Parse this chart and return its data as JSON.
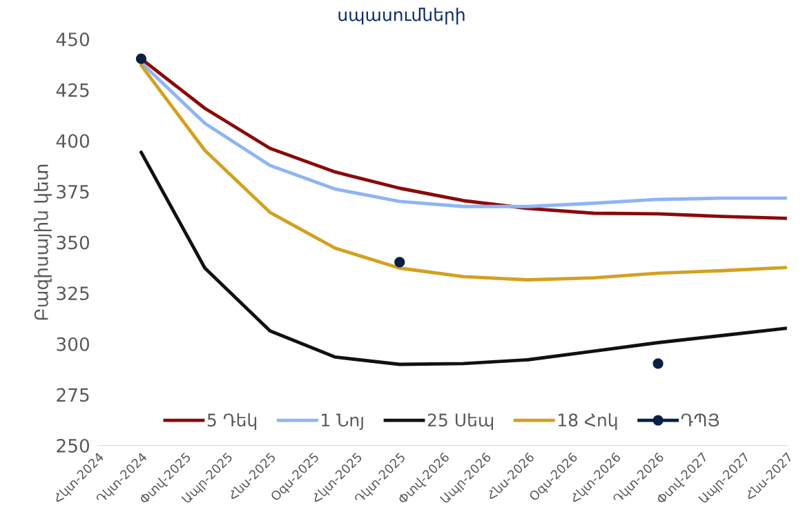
{
  "chart_data": {
    "type": "line",
    "title": "սպասումների",
    "ylabel": "Բազիսային կետ",
    "x": [
      "2024-12",
      "2025-03",
      "2025-06",
      "2025-09",
      "2025-12",
      "2026-03",
      "2026-06",
      "2026-09",
      "2026-12",
      "2027-03",
      "2027-06"
    ],
    "series": [
      {
        "name": "5 Դեկ",
        "color": "#8b0a0a",
        "values": [
          440.3,
          415.9,
          396.2,
          384.6,
          376.6,
          370.5,
          366.6,
          364.3,
          364.0,
          362.7,
          361.8
        ]
      },
      {
        "name": "1 Նոյ",
        "color": "#8fb4f5",
        "values": [
          438.4,
          408.5,
          387.8,
          376.2,
          370.1,
          367.6,
          367.6,
          369.2,
          371.1,
          371.7,
          371.7
        ]
      },
      {
        "name": "25 Սեպ",
        "color": "#111111",
        "values": [
          394.3,
          337.3,
          306.4,
          293.5,
          289.9,
          290.3,
          292.2,
          296.4,
          300.6,
          304.1,
          307.7
        ]
      },
      {
        "name": "18 Հոկ",
        "color": "#d4a020",
        "values": [
          437.1,
          395.2,
          364.7,
          347.1,
          337.3,
          333.1,
          331.5,
          332.5,
          334.8,
          336.0,
          337.6
        ]
      },
      {
        "name": "ԴՊՅ",
        "color": "#0a1f44",
        "marker": "circle",
        "values": [
          440.3,
          null,
          null,
          null,
          340.2,
          null,
          null,
          null,
          290.3,
          null,
          null
        ]
      }
    ],
    "xlim": [
      "2024-10",
      "2027-06"
    ],
    "xticks": [
      {
        "value": "2024-10",
        "label": "Հկտ-2024"
      },
      {
        "value": "2024-12",
        "label": "Դկտ-2024"
      },
      {
        "value": "2025-02",
        "label": "Փտվ-2025"
      },
      {
        "value": "2025-04",
        "label": "Ապր-2025"
      },
      {
        "value": "2025-06",
        "label": "Հնս-2025"
      },
      {
        "value": "2025-08",
        "label": "Օգս-2025"
      },
      {
        "value": "2025-10",
        "label": "Հկտ-2025"
      },
      {
        "value": "2025-12",
        "label": "Դկտ-2025"
      },
      {
        "value": "2026-02",
        "label": "Փտվ-2026"
      },
      {
        "value": "2026-04",
        "label": "Ապր-2026"
      },
      {
        "value": "2026-06",
        "label": "Հնս-2026"
      },
      {
        "value": "2026-08",
        "label": "Օգս-2026"
      },
      {
        "value": "2026-10",
        "label": "Հկտ-2026"
      },
      {
        "value": "2026-12",
        "label": "Դկտ-2026"
      },
      {
        "value": "2027-02",
        "label": "Փտվ-2027"
      },
      {
        "value": "2027-04",
        "label": "Ապր-2027"
      },
      {
        "value": "2027-06",
        "label": "Հնս-2027"
      }
    ],
    "ylim": [
      250,
      450
    ],
    "yticks": [
      250,
      275,
      300,
      325,
      350,
      375,
      400,
      425,
      450
    ],
    "grid": false,
    "legend": "bottom",
    "line_style": "solid"
  }
}
